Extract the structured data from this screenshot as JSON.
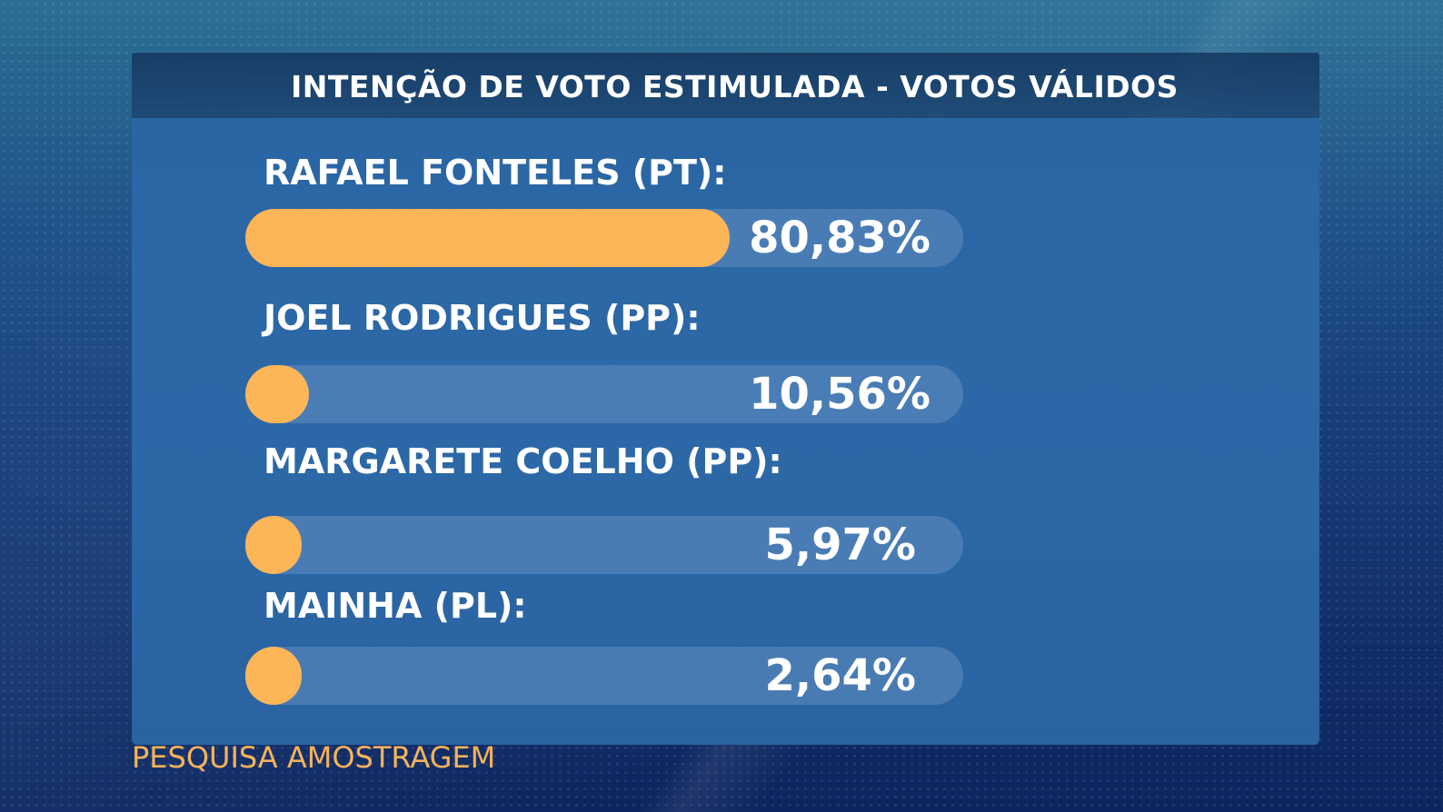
{
  "chart_data": {
    "type": "bar",
    "orientation": "horizontal",
    "title": "INTENÇÃO DE VOTO ESTIMULADA - VOTOS VÁLIDOS",
    "categories": [
      "RAFAEL FONTELES (PT):",
      "JOEL RODRIGUES (PP):",
      "MARGARETE COELHO (PP):",
      "MAINHA (PL):"
    ],
    "values": [
      80.83,
      10.56,
      5.97,
      2.64
    ],
    "value_labels": [
      "80,83%",
      "10,56%",
      "5,97%",
      "2,64%"
    ],
    "xlim": [
      0,
      100
    ],
    "unit": "%",
    "bar_color": "#fdb657",
    "track_color": "#5e86b8",
    "grid": false,
    "legend": "none"
  },
  "footer": {
    "source": "PESQUISA AMOSTRAGEM"
  },
  "colors": {
    "background": "#163b78",
    "panel": "#2b66a4",
    "accent": "#fdb657",
    "source_text": "#f6b25a",
    "text": "#ffffff"
  }
}
